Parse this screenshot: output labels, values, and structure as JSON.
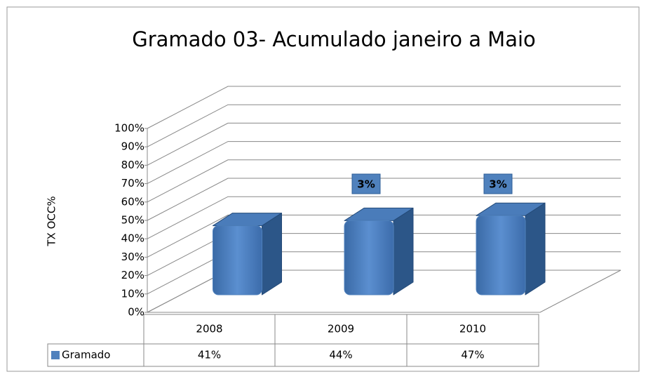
{
  "chart_data": {
    "type": "bar3d",
    "title": "Gramado 03- Acumulado janeiro a Maio",
    "y_label": "TX OCC%",
    "categories": [
      "2008",
      "2009",
      "2010"
    ],
    "series": [
      {
        "name": "Gramado",
        "color": "#4f81bd",
        "values": [
          41,
          44,
          47
        ],
        "value_labels": [
          "41%",
          "44%",
          "47%"
        ]
      }
    ],
    "annotations": [
      {
        "category": "2009",
        "label": "3%"
      },
      {
        "category": "2010",
        "label": "3%"
      }
    ],
    "ylim": [
      0,
      100
    ],
    "yticks": [
      {
        "value": 0,
        "label": "0%"
      },
      {
        "value": 10,
        "label": "10%"
      },
      {
        "value": 20,
        "label": "20%"
      },
      {
        "value": 30,
        "label": "30%"
      },
      {
        "value": 40,
        "label": "40%"
      },
      {
        "value": 50,
        "label": "50%"
      },
      {
        "value": 60,
        "label": "60%"
      },
      {
        "value": 70,
        "label": "70%"
      },
      {
        "value": 80,
        "label": "80%"
      },
      {
        "value": 90,
        "label": "90%"
      },
      {
        "value": 100,
        "label": "100%"
      }
    ],
    "grid": true,
    "data_table": true
  }
}
